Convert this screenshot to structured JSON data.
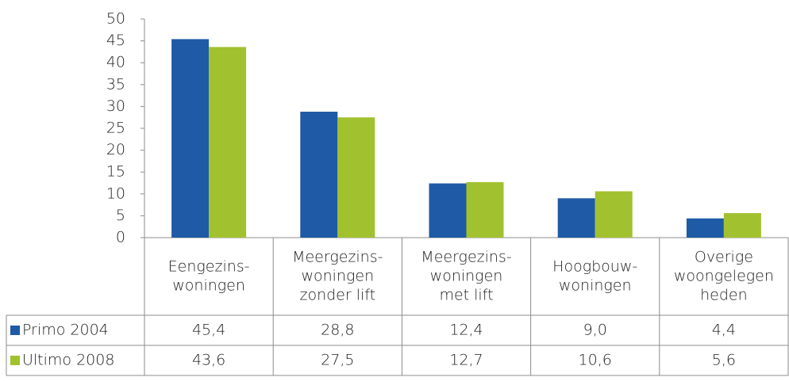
{
  "chart_data": {
    "type": "bar",
    "categories": [
      [
        "Eengezins-",
        "woningen"
      ],
      [
        "Meergezins-",
        "woningen",
        "zonder lift"
      ],
      [
        "Meergezins-",
        "woningen",
        "met lift"
      ],
      [
        "Hoogbouw-",
        "woningen"
      ],
      [
        "Overige",
        "woongelegen",
        "heden"
      ]
    ],
    "series": [
      {
        "name": "Primo 2004",
        "color": "#1f5aa6",
        "values": [
          45.4,
          28.8,
          12.4,
          9.0,
          4.4
        ],
        "value_labels": [
          "45,4",
          "28,8",
          "12,4",
          "9,0",
          "4,4"
        ]
      },
      {
        "name": "Ultimo 2008",
        "color": "#a2c12f",
        "values": [
          43.6,
          27.5,
          12.7,
          10.6,
          5.6
        ],
        "value_labels": [
          "43,6",
          "27,5",
          "12,7",
          "10,6",
          "5,6"
        ]
      }
    ],
    "ylim": [
      0,
      50
    ],
    "yticks": [
      0,
      5,
      10,
      15,
      20,
      25,
      30,
      35,
      40,
      45,
      50
    ],
    "grid": false
  }
}
